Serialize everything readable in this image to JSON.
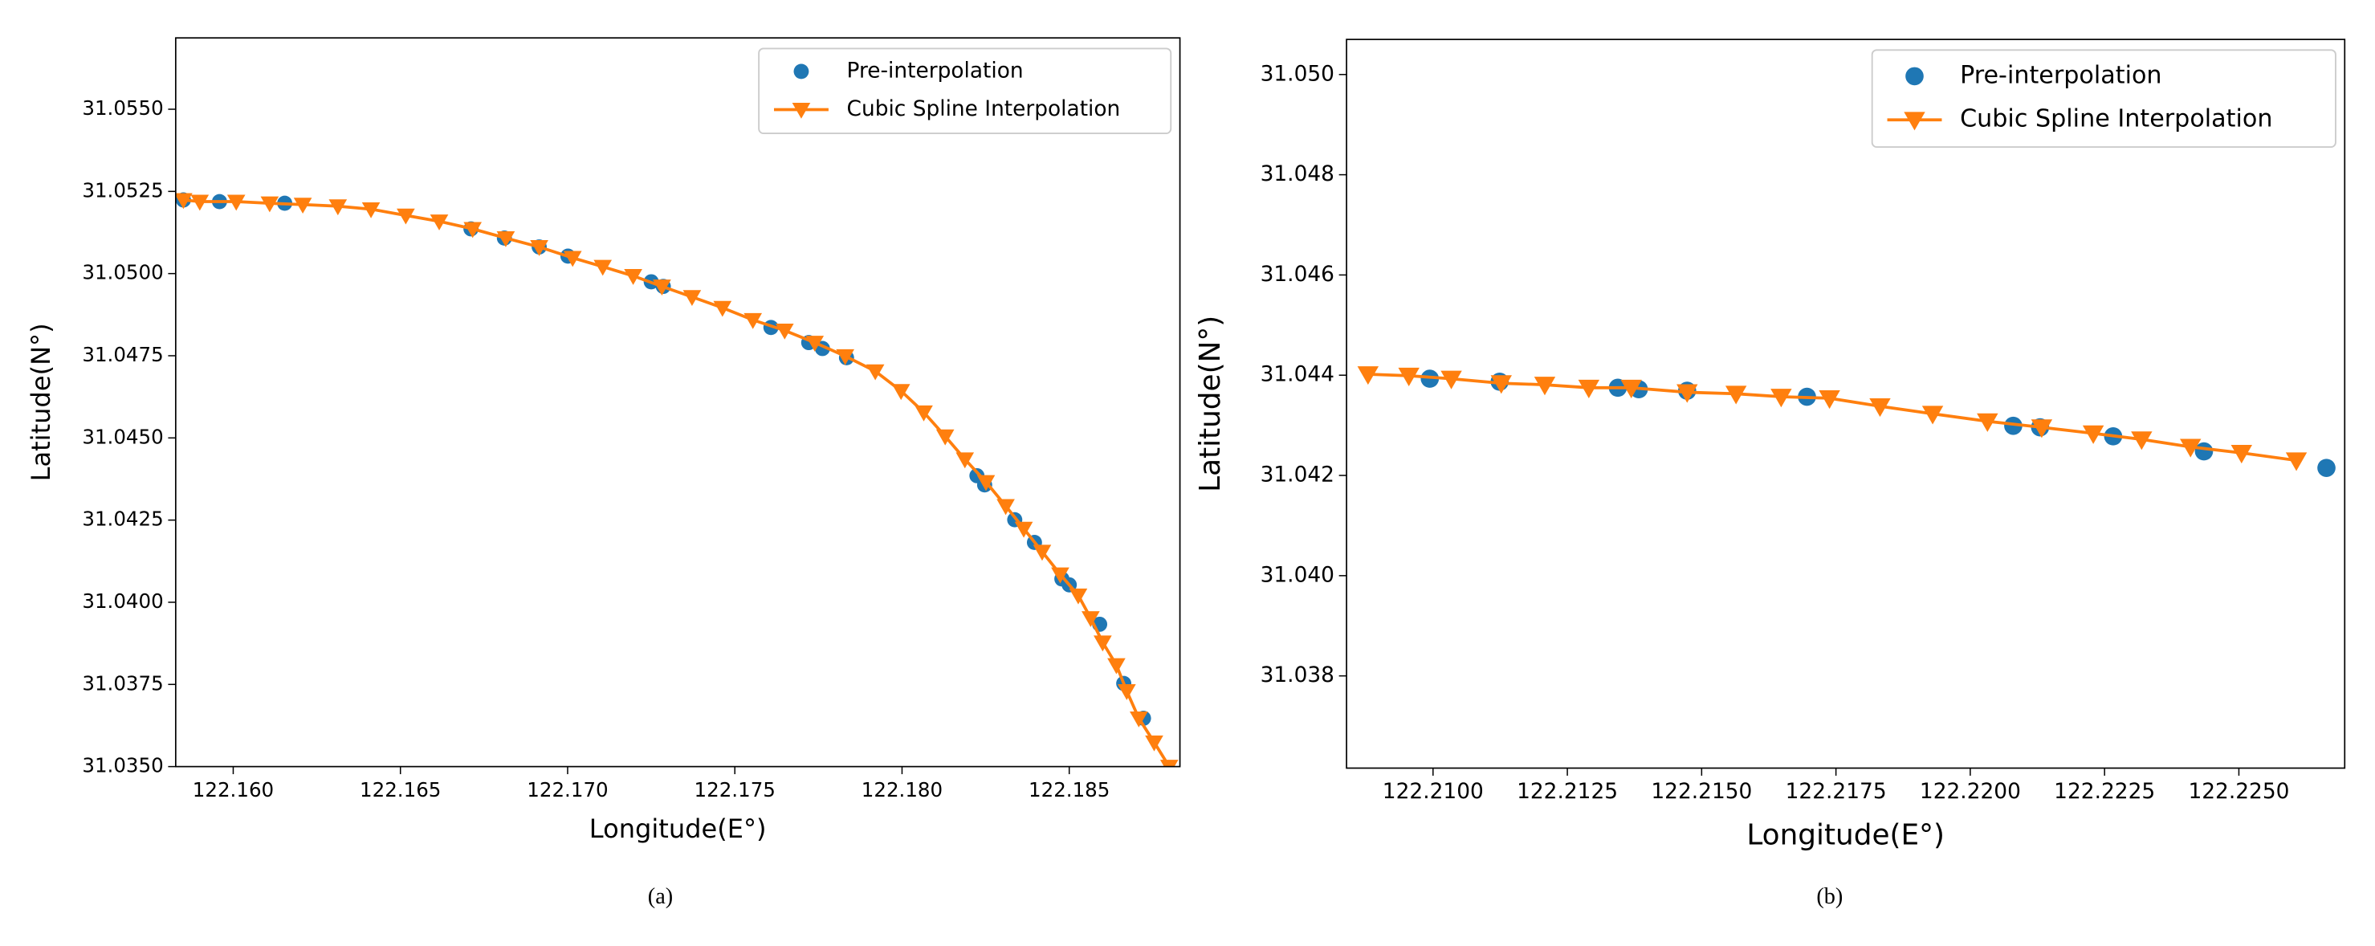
{
  "chart_data": [
    {
      "type": "line",
      "caption": "(a)",
      "xlabel": "Longitude(E°)",
      "ylabel": "Latitude(N°)",
      "legend": "upper right",
      "xlim": [
        122.15828,
        122.18831
      ],
      "ylim": [
        31.035,
        31.05717
      ],
      "xticks": [
        {
          "value": 122.16,
          "label": "122.160"
        },
        122.165,
        {
          "value": 122.17,
          "label": "122.170"
        },
        122.175,
        {
          "value": 122.18,
          "label": "122.180"
        },
        122.185
      ],
      "yticks": [
        {
          "value": 31.035,
          "label": "31.0350"
        },
        31.0375,
        {
          "value": 31.04,
          "label": "31.0400"
        },
        31.0425,
        {
          "value": 31.045,
          "label": "31.0450"
        },
        31.0475,
        {
          "value": 31.05,
          "label": "31.0500"
        },
        31.0525,
        {
          "value": 31.055,
          "label": "31.0550"
        }
      ],
      "series": [
        {
          "name": "Pre-interpolation",
          "color": "#1f77b4",
          "marker": "circle",
          "line": false,
          "x": [
            122.15851,
            122.15959,
            122.16154,
            122.16711,
            122.16811,
            122.16915,
            122.17001,
            122.1725,
            122.17286,
            122.17608,
            122.17721,
            122.17762,
            122.17834,
            122.18224,
            122.18247,
            122.18337,
            122.18396,
            122.18478,
            122.185,
            122.18591,
            122.18663,
            122.18722
          ],
          "values": [
            31.05224,
            31.05219,
            31.05214,
            31.05136,
            31.05108,
            31.05081,
            31.05053,
            31.04975,
            31.04961,
            31.04836,
            31.0479,
            31.04772,
            31.04744,
            31.04385,
            31.04357,
            31.04251,
            31.04182,
            31.04071,
            31.04053,
            31.03933,
            31.03753,
            31.03647
          ]
        },
        {
          "name": "Cubic Spline Interpolation",
          "color": "#ff7f0e",
          "marker": "triangle-down",
          "line": true,
          "x": [
            122.15851,
            122.159,
            122.16009,
            122.16109,
            122.16208,
            122.16313,
            122.16412,
            122.16516,
            122.16616,
            122.16716,
            122.16815,
            122.16915,
            122.17015,
            122.17105,
            122.17196,
            122.17282,
            122.17372,
            122.17463,
            122.17554,
            122.17649,
            122.17739,
            122.1783,
            122.1792,
            122.17997,
            122.18065,
            122.18129,
            122.18188,
            122.18251,
            122.1831,
            122.18364,
            122.18419,
            122.18473,
            122.18527,
            122.18564,
            122.186,
            122.18641,
            122.18672,
            122.18708,
            122.18754,
            122.18799
          ],
          "values": [
            31.05224,
            31.05219,
            31.05219,
            31.05214,
            31.0521,
            31.05205,
            31.05196,
            31.05177,
            31.05159,
            31.05136,
            31.05108,
            31.05081,
            31.05048,
            31.05021,
            31.04993,
            31.04961,
            31.04929,
            31.04896,
            31.04859,
            31.04827,
            31.0479,
            31.04749,
            31.04703,
            31.04643,
            31.04578,
            31.04505,
            31.04435,
            31.04366,
            31.04293,
            31.04224,
            31.04154,
            31.04085,
            31.04021,
            31.03952,
            31.03878,
            31.03809,
            31.0373,
            31.03647,
            31.03574,
            31.035
          ]
        }
      ]
    },
    {
      "type": "line",
      "caption": "(b)",
      "xlabel": "Longitude(E°)",
      "ylabel": "Latitude(N°)",
      "legend": "upper right",
      "xlim": [
        122.20839,
        122.22697
      ],
      "ylim": [
        31.03616,
        31.0507
      ],
      "xticks": [
        {
          "value": 122.21,
          "label": "122.2100"
        },
        122.2125,
        {
          "value": 122.215,
          "label": "122.2150"
        },
        122.2175,
        {
          "value": 122.22,
          "label": "122.2200"
        },
        122.2225,
        {
          "value": 122.225,
          "label": "122.2250"
        }
      ],
      "yticks": [
        31.038,
        {
          "value": 31.04,
          "label": "31.040"
        },
        31.042,
        31.044,
        31.046,
        31.048,
        {
          "value": 31.05,
          "label": "31.050"
        }
      ],
      "series": [
        {
          "name": "Pre-interpolation",
          "color": "#1f77b4",
          "marker": "circle",
          "line": false,
          "x": [
            122.20994,
            122.21124,
            122.21344,
            122.21383,
            122.21473,
            122.21696,
            122.2208,
            122.2213,
            122.22266,
            122.22435,
            122.22663
          ],
          "values": [
            31.04393,
            31.04387,
            31.04375,
            31.04372,
            31.04369,
            31.04357,
            31.04299,
            31.04296,
            31.04278,
            31.04248,
            31.04215
          ]
        },
        {
          "name": "Cubic Spline Interpolation",
          "color": "#ff7f0e",
          "marker": "triangle-down",
          "line": true,
          "x": [
            122.20879,
            122.20955,
            122.21034,
            122.21127,
            122.21208,
            122.2129,
            122.21369,
            122.21473,
            122.21564,
            122.21648,
            122.21738,
            122.21832,
            122.2193,
            122.22032,
            122.22133,
            122.22229,
            122.22319,
            122.2241,
            122.22505,
            122.22607
          ],
          "values": [
            31.04402,
            31.04399,
            31.04393,
            31.04384,
            31.04381,
            31.04375,
            31.04375,
            31.04366,
            31.04363,
            31.04357,
            31.04354,
            31.04338,
            31.04323,
            31.04308,
            31.04296,
            31.04284,
            31.04272,
            31.04257,
            31.04245,
            31.0423
          ]
        }
      ]
    }
  ]
}
